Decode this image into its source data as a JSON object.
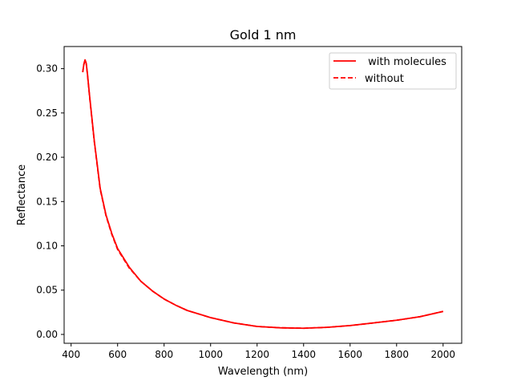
{
  "chart_data": {
    "type": "line",
    "title": "Gold 1 nm",
    "xlabel": "Wavelength (nm)",
    "ylabel": "Reflectance",
    "xlim": [
      370,
      2080
    ],
    "ylim": [
      -0.01,
      0.325
    ],
    "xticks": [
      400,
      600,
      800,
      1000,
      1200,
      1400,
      1600,
      1800,
      2000
    ],
    "xtick_labels": [
      "400",
      "600",
      "800",
      "1000",
      "1200",
      "1400",
      "1600",
      "1800",
      "2000"
    ],
    "yticks": [
      0.0,
      0.05,
      0.1,
      0.15,
      0.2,
      0.25,
      0.3
    ],
    "ytick_labels": [
      "0.00",
      "0.05",
      "0.10",
      "0.15",
      "0.20",
      "0.25",
      "0.30"
    ],
    "grid": false,
    "legend_position": "top-right",
    "series": [
      {
        "name": " with molecules",
        "color": "#ff0000",
        "style": "solid",
        "x": [
          450,
          455,
          460,
          465,
          470,
          480,
          500,
          525,
          550,
          575,
          600,
          650,
          700,
          750,
          800,
          850,
          900,
          1000,
          1100,
          1200,
          1300,
          1400,
          1500,
          1600,
          1700,
          1800,
          1900,
          2000
        ],
        "y": [
          0.296,
          0.305,
          0.31,
          0.306,
          0.295,
          0.268,
          0.218,
          0.165,
          0.135,
          0.114,
          0.097,
          0.076,
          0.06,
          0.049,
          0.04,
          0.033,
          0.027,
          0.019,
          0.013,
          0.009,
          0.0075,
          0.007,
          0.008,
          0.01,
          0.013,
          0.016,
          0.02,
          0.026
        ]
      },
      {
        "name": "without",
        "color": "#ff0000",
        "style": "dashed",
        "x": [
          450,
          455,
          460,
          465,
          470,
          480,
          500,
          525,
          550,
          575,
          600,
          650,
          700,
          750,
          800,
          850,
          900,
          1000,
          1100,
          1200,
          1300,
          1400,
          1500,
          1600,
          1700,
          1800,
          1900,
          2000
        ],
        "y": [
          0.296,
          0.305,
          0.31,
          0.306,
          0.294,
          0.267,
          0.217,
          0.164,
          0.134,
          0.113,
          0.096,
          0.075,
          0.06,
          0.049,
          0.04,
          0.033,
          0.027,
          0.019,
          0.013,
          0.009,
          0.0075,
          0.007,
          0.008,
          0.01,
          0.013,
          0.016,
          0.02,
          0.026
        ]
      }
    ]
  }
}
